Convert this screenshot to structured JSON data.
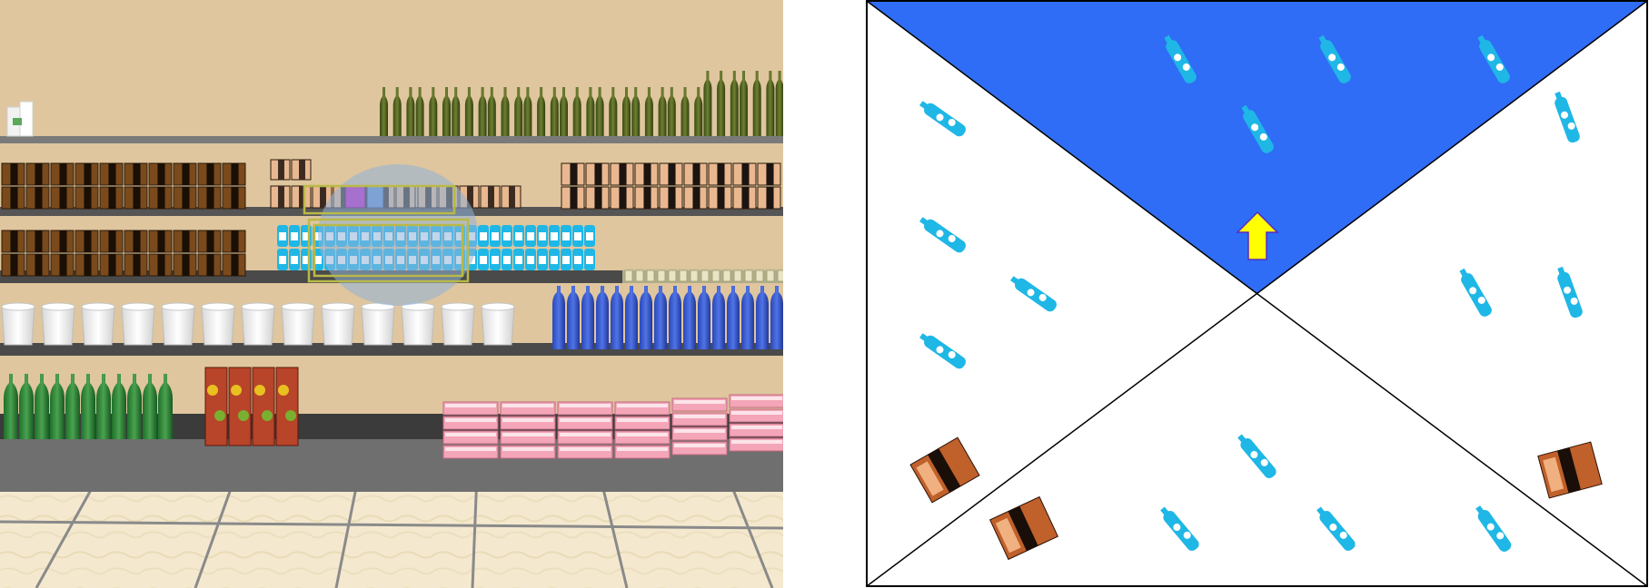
{
  "app": {
    "panels": [
      "first-person-scene",
      "top-down-minimap"
    ]
  },
  "colors": {
    "wall": "#dfc69e",
    "shelf_top": "#6e6e6e",
    "shelf_dark": "#3a3a3a",
    "floor": "#f3e8cf",
    "floor_grid": "#7d7d7d",
    "minimap_bg": "#ffffff",
    "minimap_view_cone": "#2f6df6",
    "player_arrow": "#ffff00",
    "player_arrow_outline": "#5a2ac0",
    "water_bottle": "#1fb7e6",
    "gaze_highlight": "#8fb3d9",
    "target_box_outline": "#b8b84a"
  },
  "scene": {
    "highlighted_item": "water-bottle-pack",
    "shelves": [
      {
        "row": 1,
        "items": [
          "wine-bottle-green"
        ]
      },
      {
        "row": 2,
        "items": [
          "cereal-box-brown",
          "snack-box-orange",
          "purple-box",
          "snack-box-orange"
        ]
      },
      {
        "row": 3,
        "items": [
          "cereal-box-brown",
          "water-bottle-pack",
          "clear-bottle-row"
        ]
      },
      {
        "row": 4,
        "items": [
          "white-tub",
          "blue-detergent-bottle"
        ]
      },
      {
        "row": 5,
        "items": [
          "green-soda-bottle",
          "fruit-juice-box",
          "pink-box"
        ]
      }
    ]
  },
  "minimap": {
    "player": {
      "icon": "arrow-up-icon",
      "facing": "up"
    },
    "objects": [
      {
        "type": "purple-box",
        "icon": "purple-box-icon"
      },
      {
        "type": "water-bottle",
        "icon": "water-bottle-icon"
      },
      {
        "type": "snack-box",
        "icon": "snack-box-icon"
      }
    ]
  }
}
